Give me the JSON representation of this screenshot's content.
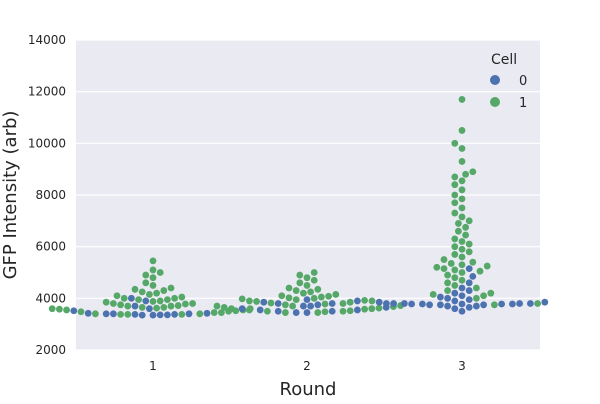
{
  "chart_data": {
    "type": "scatter",
    "xlabel": "Round",
    "ylabel": "GFP Intensity (arb)",
    "categories": [
      "1",
      "2",
      "3"
    ],
    "ylim": [
      2000,
      14000
    ],
    "yticks": [
      2000,
      4000,
      6000,
      8000,
      10000,
      12000,
      14000
    ],
    "ytick_labels": [
      "2000",
      "4000",
      "6000",
      "8000",
      "10000",
      "12000",
      "14000"
    ],
    "grid": true,
    "legend": {
      "title": "Cell",
      "placement": "top-right",
      "entries": [
        {
          "label": "0",
          "color": "#4c72b0"
        },
        {
          "label": "1",
          "color": "#55a868"
        }
      ]
    },
    "series": [
      {
        "name": "0",
        "color": "#4c72b0",
        "points": [
          [
            1,
            3400
          ],
          [
            1,
            3400
          ],
          [
            1,
            3400
          ],
          [
            1,
            3380
          ],
          [
            1,
            3380
          ],
          [
            1,
            3360
          ],
          [
            1,
            3360
          ],
          [
            1,
            3350
          ],
          [
            1,
            3350
          ],
          [
            1,
            3420
          ],
          [
            1,
            3420
          ],
          [
            1,
            3520
          ],
          [
            1,
            3900
          ],
          [
            1,
            4000
          ],
          [
            1,
            3600
          ],
          [
            1,
            3700
          ],
          [
            2,
            3450
          ],
          [
            2,
            3450
          ],
          [
            2,
            3500
          ],
          [
            2,
            3500
          ],
          [
            2,
            3550
          ],
          [
            2,
            3550
          ],
          [
            2,
            3600
          ],
          [
            2,
            3650
          ],
          [
            2,
            3700
          ],
          [
            2,
            3750
          ],
          [
            2,
            3800
          ],
          [
            2,
            3800
          ],
          [
            2,
            3850
          ],
          [
            2,
            3900
          ],
          [
            2,
            3950
          ],
          [
            2,
            3700
          ],
          [
            3,
            3500
          ],
          [
            3,
            3600
          ],
          [
            3,
            3650
          ],
          [
            3,
            3700
          ],
          [
            3,
            3700
          ],
          [
            3,
            3750
          ],
          [
            3,
            3750
          ],
          [
            3,
            3750
          ],
          [
            3,
            3780
          ],
          [
            3,
            3780
          ],
          [
            3,
            3780
          ],
          [
            3,
            3780
          ],
          [
            3,
            3780
          ],
          [
            3,
            3800
          ],
          [
            3,
            3800
          ],
          [
            3,
            3800
          ],
          [
            3,
            3800
          ],
          [
            3,
            3800
          ],
          [
            3,
            3850
          ],
          [
            3,
            3850
          ],
          [
            3,
            3900
          ],
          [
            3,
            3950
          ],
          [
            3,
            4000
          ],
          [
            3,
            4050
          ],
          [
            3,
            4100
          ],
          [
            3,
            4200
          ],
          [
            3,
            4300
          ],
          [
            3,
            4400
          ],
          [
            3,
            4600
          ],
          [
            3,
            4850
          ],
          [
            3,
            5150
          ]
        ]
      },
      {
        "name": "1",
        "color": "#55a868",
        "points": [
          [
            1,
            3380
          ],
          [
            1,
            3380
          ],
          [
            1,
            3380
          ],
          [
            1,
            3400
          ],
          [
            1,
            3400
          ],
          [
            1,
            3450
          ],
          [
            1,
            3450
          ],
          [
            1,
            3480
          ],
          [
            1,
            3500
          ],
          [
            1,
            3520
          ],
          [
            1,
            3550
          ],
          [
            1,
            3550
          ],
          [
            1,
            3580
          ],
          [
            1,
            3600
          ],
          [
            1,
            3600
          ],
          [
            1,
            3620
          ],
          [
            1,
            3650
          ],
          [
            1,
            3650
          ],
          [
            1,
            3700
          ],
          [
            1,
            3700
          ],
          [
            1,
            3720
          ],
          [
            1,
            3750
          ],
          [
            1,
            3780
          ],
          [
            1,
            3800
          ],
          [
            1,
            3800
          ],
          [
            1,
            3850
          ],
          [
            1,
            3880
          ],
          [
            1,
            3900
          ],
          [
            1,
            3950
          ],
          [
            1,
            3950
          ],
          [
            1,
            4000
          ],
          [
            1,
            4000
          ],
          [
            1,
            4050
          ],
          [
            1,
            4100
          ],
          [
            1,
            4150
          ],
          [
            1,
            4200
          ],
          [
            1,
            4250
          ],
          [
            1,
            4300
          ],
          [
            1,
            4350
          ],
          [
            1,
            4400
          ],
          [
            1,
            4500
          ],
          [
            1,
            4600
          ],
          [
            1,
            4800
          ],
          [
            1,
            4900
          ],
          [
            1,
            5000
          ],
          [
            1,
            5100
          ],
          [
            1,
            5450
          ],
          [
            2,
            3450
          ],
          [
            2,
            3450
          ],
          [
            2,
            3480
          ],
          [
            2,
            3500
          ],
          [
            2,
            3500
          ],
          [
            2,
            3520
          ],
          [
            2,
            3550
          ],
          [
            2,
            3580
          ],
          [
            2,
            3600
          ],
          [
            2,
            3600
          ],
          [
            2,
            3620
          ],
          [
            2,
            3650
          ],
          [
            2,
            3680
          ],
          [
            2,
            3700
          ],
          [
            2,
            3700
          ],
          [
            2,
            3720
          ],
          [
            2,
            3750
          ],
          [
            2,
            3780
          ],
          [
            2,
            3800
          ],
          [
            2,
            3820
          ],
          [
            2,
            3850
          ],
          [
            2,
            3880
          ],
          [
            2,
            3900
          ],
          [
            2,
            3920
          ],
          [
            2,
            3950
          ],
          [
            2,
            3980
          ],
          [
            2,
            4000
          ],
          [
            2,
            4020
          ],
          [
            2,
            4050
          ],
          [
            2,
            4080
          ],
          [
            2,
            4100
          ],
          [
            2,
            4150
          ],
          [
            2,
            4200
          ],
          [
            2,
            4250
          ],
          [
            2,
            4300
          ],
          [
            2,
            4350
          ],
          [
            2,
            4400
          ],
          [
            2,
            4500
          ],
          [
            2,
            4600
          ],
          [
            2,
            4700
          ],
          [
            2,
            4800
          ],
          [
            2,
            4900
          ],
          [
            2,
            5000
          ],
          [
            3,
            3750
          ],
          [
            3,
            3800
          ],
          [
            3,
            3900
          ],
          [
            3,
            4000
          ],
          [
            3,
            4100
          ],
          [
            3,
            4150
          ],
          [
            3,
            4200
          ],
          [
            3,
            4300
          ],
          [
            3,
            4400
          ],
          [
            3,
            4500
          ],
          [
            3,
            4600
          ],
          [
            3,
            4700
          ],
          [
            3,
            4800
          ],
          [
            3,
            4900
          ],
          [
            3,
            5000
          ],
          [
            3,
            5050
          ],
          [
            3,
            5100
          ],
          [
            3,
            5150
          ],
          [
            3,
            5200
          ],
          [
            3,
            5250
          ],
          [
            3,
            5300
          ],
          [
            3,
            5350
          ],
          [
            3,
            5400
          ],
          [
            3,
            5500
          ],
          [
            3,
            5600
          ],
          [
            3,
            5700
          ],
          [
            3,
            5800
          ],
          [
            3,
            5900
          ],
          [
            3,
            6000
          ],
          [
            3,
            6100
          ],
          [
            3,
            6200
          ],
          [
            3,
            6300
          ],
          [
            3,
            6450
          ],
          [
            3,
            6600
          ],
          [
            3,
            6750
          ],
          [
            3,
            6900
          ],
          [
            3,
            7000
          ],
          [
            3,
            7150
          ],
          [
            3,
            7300
          ],
          [
            3,
            7500
          ],
          [
            3,
            7700
          ],
          [
            3,
            7850
          ],
          [
            3,
            8000
          ],
          [
            3,
            8200
          ],
          [
            3,
            8400
          ],
          [
            3,
            8550
          ],
          [
            3,
            8700
          ],
          [
            3,
            8800
          ],
          [
            3,
            8900
          ],
          [
            3,
            9300
          ],
          [
            3,
            9800
          ],
          [
            3,
            10000
          ],
          [
            3,
            10500
          ],
          [
            3,
            11700
          ]
        ]
      }
    ]
  }
}
